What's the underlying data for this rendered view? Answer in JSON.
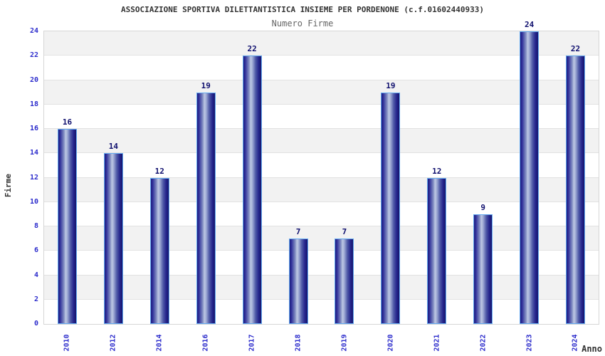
{
  "chart_data": {
    "type": "bar",
    "title": "ASSOCIAZIONE SPORTIVA DILETTANTISTICA INSIEME PER PORDENONE (c.f.01602440933)",
    "subtitle": "Numero Firme",
    "xlabel": "Anno",
    "ylabel": "Firme",
    "categories": [
      "2010",
      "2012",
      "2014",
      "2016",
      "2017",
      "2018",
      "2019",
      "2020",
      "2021",
      "2022",
      "2023",
      "2024"
    ],
    "values": [
      16,
      14,
      12,
      19,
      22,
      7,
      7,
      19,
      12,
      9,
      24,
      22
    ],
    "ylim": [
      0,
      24
    ],
    "ytick_step": 2,
    "yticks": [
      0,
      2,
      4,
      6,
      8,
      10,
      12,
      14,
      16,
      18,
      20,
      22,
      24
    ],
    "grid": true,
    "legend": "none",
    "colors": {
      "bar_border": "#63a9f0",
      "bar_edge_dark": "#1c1c7e",
      "bar_highlight": "#bdc7e3",
      "tick_label": "#2d2dcc",
      "value_label": "#0f0f6e",
      "band_gray": "#f2f2f2",
      "band_white": "#ffffff",
      "gridline": "#e2e2e2",
      "plot_border": "#d6d6d6",
      "title_color": "#333333",
      "subtitle_color": "#666666",
      "axis_title_color": "#333333"
    }
  }
}
